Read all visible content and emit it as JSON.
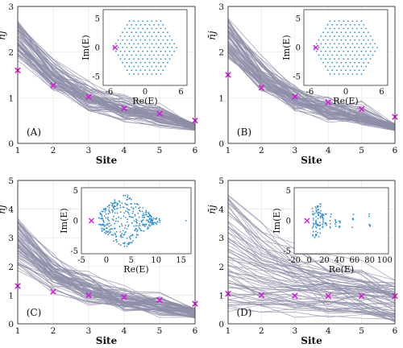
{
  "figure": {
    "panels": [
      {
        "id": "A",
        "panel_label": "(A)",
        "xlabel": "Site",
        "ylabel": "n̄j",
        "main_ylim": [
          0,
          3
        ],
        "main_yticks": [
          0,
          1,
          2,
          3
        ],
        "main_xlim": [
          1,
          6
        ],
        "main_xticks": [
          1,
          2,
          3,
          4,
          5,
          6
        ],
        "curve_start": [
          1.9,
          2.7
        ],
        "curve_end": [
          0.28,
          0.45
        ],
        "curve_decay": 0.55,
        "inset": {
          "xlabel": "Re(E)",
          "ylabel": "Im(E)",
          "xlim": [
            -7,
            7
          ],
          "ylim": [
            -6.5,
            6.5
          ],
          "xticks": [
            -6,
            0,
            6
          ],
          "yticks": [
            -5,
            0,
            5
          ],
          "pattern": "hexagon"
        },
        "marker_x": -5
      },
      {
        "id": "B",
        "panel_label": "(B)",
        "xlabel": "Site",
        "ylabel": "n̄j",
        "main_ylim": [
          0,
          3
        ],
        "main_yticks": [
          0,
          1,
          2,
          3
        ],
        "main_xlim": [
          1,
          6
        ],
        "main_xticks": [
          1,
          2,
          3,
          4,
          5,
          6
        ],
        "curve_start": [
          1.9,
          2.7
        ],
        "curve_end": [
          0.28,
          0.45
        ],
        "curve_decay": 0.55,
        "inset": {
          "xlabel": "Re(E)",
          "ylabel": "Im(E)",
          "xlim": [
            -7,
            7
          ],
          "ylim": [
            -6.5,
            6.5
          ],
          "xticks": [
            -6,
            0,
            6
          ],
          "yticks": [
            -5,
            0,
            5
          ],
          "pattern": "hexagon"
        },
        "marker_x": -5
      },
      {
        "id": "C",
        "panel_label": "(C)",
        "xlabel": "Site",
        "ylabel": "n̄j",
        "main_ylim": [
          0,
          5
        ],
        "main_yticks": [
          0,
          1,
          2,
          3,
          4,
          5
        ],
        "main_xlim": [
          1,
          6
        ],
        "main_xticks": [
          1,
          2,
          3,
          4,
          5,
          6
        ],
        "curve_start": [
          1.8,
          3.6
        ],
        "curve_end": [
          0.2,
          0.55
        ],
        "curve_decay": 0.6,
        "inset": {
          "xlabel": "Re(E)",
          "ylabel": "Im(E)",
          "xlim": [
            -5,
            17
          ],
          "ylim": [
            -5.5,
            5.5
          ],
          "xticks": [
            -5,
            0,
            5,
            10,
            15
          ],
          "yticks": [
            -5,
            0,
            5
          ],
          "pattern": "fan"
        },
        "marker_x": -3
      },
      {
        "id": "D",
        "panel_label": "(D)",
        "xlabel": "Site",
        "ylabel": "n̄j",
        "main_ylim": [
          0,
          5
        ],
        "main_yticks": [
          0,
          1,
          2,
          3,
          4,
          5
        ],
        "main_xlim": [
          1,
          6
        ],
        "main_xticks": [
          1,
          2,
          3,
          4,
          5,
          6
        ],
        "curve_start": [
          0.5,
          4.6
        ],
        "curve_end": [
          0.05,
          1.6
        ],
        "curve_decay": 0.45,
        "inset": {
          "xlabel": "Re(E)",
          "ylabel": "Im(E)",
          "xlim": [
            -20,
            105
          ],
          "ylim": [
            -5.5,
            5.5
          ],
          "xticks": [
            -20,
            0,
            20,
            40,
            60,
            80,
            100
          ],
          "yticks": [
            -5,
            0,
            5
          ],
          "pattern": "columns"
        },
        "marker_x": -3
      }
    ]
  },
  "chart_data": [
    {
      "type": "line",
      "panel": "A",
      "xlabel": "Site",
      "ylabel": "n̄j",
      "ylim": [
        0,
        3
      ],
      "x": [
        1,
        2,
        3,
        4,
        5,
        6
      ],
      "series": [
        {
          "name": "",
          "values": [
            1.6,
            1.27,
            1.02,
            0.77,
            0.65,
            0.5
          ]
        }
      ]
    },
    {
      "type": "line",
      "panel": "B",
      "xlabel": "Site",
      "ylabel": "n̄j",
      "ylim": [
        0,
        3
      ],
      "x": [
        1,
        2,
        3,
        4,
        5,
        6
      ],
      "series": [
        {
          "name": "",
          "values": [
            1.5,
            1.22,
            1.02,
            0.9,
            0.75,
            0.58
          ]
        }
      ]
    },
    {
      "type": "line",
      "panel": "C",
      "xlabel": "Site",
      "ylabel": "n̄j",
      "ylim": [
        0,
        5
      ],
      "x": [
        1,
        2,
        3,
        4,
        5,
        6
      ],
      "series": [
        {
          "name": "",
          "values": [
            1.32,
            1.12,
            1.0,
            0.93,
            0.83,
            0.7
          ]
        }
      ]
    },
    {
      "type": "line",
      "panel": "D",
      "xlabel": "Site",
      "ylabel": "n̄j",
      "ylim": [
        0,
        5
      ],
      "x": [
        1,
        2,
        3,
        4,
        5,
        6
      ],
      "series": [
        {
          "name": "",
          "values": [
            1.05,
            1.0,
            0.98,
            0.97,
            0.97,
            0.97
          ]
        }
      ]
    }
  ],
  "colors": {
    "curves": "#8e8ea8",
    "markers": "#d81bd8",
    "spectrum": "#2e8fd6"
  }
}
